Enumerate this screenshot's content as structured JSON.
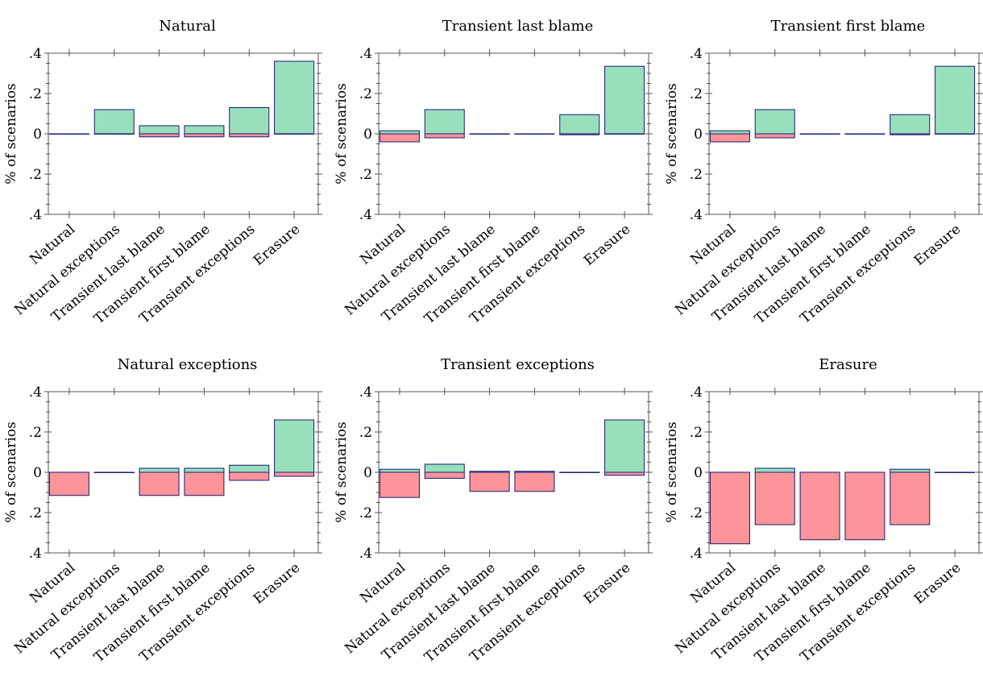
{
  "colors": {
    "positive": "#98e0bb",
    "negative": "#fc9499",
    "bar_outline": "#1a1a7a",
    "axis": "#555555"
  },
  "chart_data": [
    {
      "type": "bar",
      "title": "Natural",
      "ylabel": "% of scenarios",
      "ylim": [
        -0.4,
        0.4
      ],
      "yticks": [
        ".4",
        ".2",
        "0",
        ".2",
        ".4"
      ],
      "categories": [
        "Natural",
        "Natural exceptions",
        "Transient last blame",
        "Transient first blame",
        "Transient exceptions",
        "Erasure"
      ],
      "series": [
        {
          "values": [
            0,
            0.12,
            0.04,
            0.04,
            0.13,
            0.36
          ]
        },
        {
          "values": [
            0,
            0,
            -0.015,
            -0.015,
            -0.015,
            0
          ]
        }
      ]
    },
    {
      "type": "bar",
      "title": "Transient last blame",
      "ylabel": "% of scenarios",
      "ylim": [
        -0.4,
        0.4
      ],
      "yticks": [
        ".4",
        ".2",
        "0",
        ".2",
        ".4"
      ],
      "categories": [
        "Natural",
        "Natural exceptions",
        "Transient last blame",
        "Transient first blame",
        "Transient exceptions",
        "Erasure"
      ],
      "series": [
        {
          "values": [
            0.015,
            0.12,
            0,
            0,
            0.095,
            0.335
          ]
        },
        {
          "values": [
            -0.04,
            -0.02,
            0,
            0,
            -0.005,
            0
          ]
        }
      ]
    },
    {
      "type": "bar",
      "title": "Transient first blame",
      "ylabel": "% of scenarios",
      "ylim": [
        -0.4,
        0.4
      ],
      "yticks": [
        ".4",
        ".2",
        "0",
        ".2",
        ".4"
      ],
      "categories": [
        "Natural",
        "Natural exceptions",
        "Transient last blame",
        "Transient first blame",
        "Transient exceptions",
        "Erasure"
      ],
      "series": [
        {
          "values": [
            0.015,
            0.12,
            0,
            0,
            0.095,
            0.335
          ]
        },
        {
          "values": [
            -0.04,
            -0.02,
            0,
            0,
            -0.005,
            0
          ]
        }
      ]
    },
    {
      "type": "bar",
      "title": "Natural exceptions",
      "ylabel": "% of scenarios",
      "ylim": [
        -0.4,
        0.4
      ],
      "yticks": [
        ".4",
        ".2",
        "0",
        ".2",
        ".4"
      ],
      "categories": [
        "Natural",
        "Natural exceptions",
        "Transient last blame",
        "Transient first blame",
        "Transient exceptions",
        "Erasure"
      ],
      "series": [
        {
          "values": [
            0,
            0,
            0.02,
            0.02,
            0.035,
            0.26
          ]
        },
        {
          "values": [
            -0.115,
            0,
            -0.115,
            -0.115,
            -0.04,
            -0.02
          ]
        }
      ]
    },
    {
      "type": "bar",
      "title": "Transient exceptions",
      "ylabel": "% of scenarios",
      "ylim": [
        -0.4,
        0.4
      ],
      "yticks": [
        ".4",
        ".2",
        "0",
        ".2",
        ".4"
      ],
      "categories": [
        "Natural",
        "Natural exceptions",
        "Transient last blame",
        "Transient first blame",
        "Transient exceptions",
        "Erasure"
      ],
      "series": [
        {
          "values": [
            0.015,
            0.04,
            0.005,
            0.005,
            0,
            0.26
          ]
        },
        {
          "values": [
            -0.125,
            -0.03,
            -0.095,
            -0.095,
            0,
            -0.015
          ]
        }
      ]
    },
    {
      "type": "bar",
      "title": "Erasure",
      "ylabel": "% of scenarios",
      "ylim": [
        -0.4,
        0.4
      ],
      "yticks": [
        ".4",
        ".2",
        "0",
        ".2",
        ".4"
      ],
      "categories": [
        "Natural",
        "Natural exceptions",
        "Transient last blame",
        "Transient first blame",
        "Transient exceptions",
        "Erasure"
      ],
      "series": [
        {
          "values": [
            0,
            0.02,
            0,
            0,
            0.015,
            0
          ]
        },
        {
          "values": [
            -0.355,
            -0.26,
            -0.335,
            -0.335,
            -0.26,
            0
          ]
        }
      ]
    }
  ]
}
